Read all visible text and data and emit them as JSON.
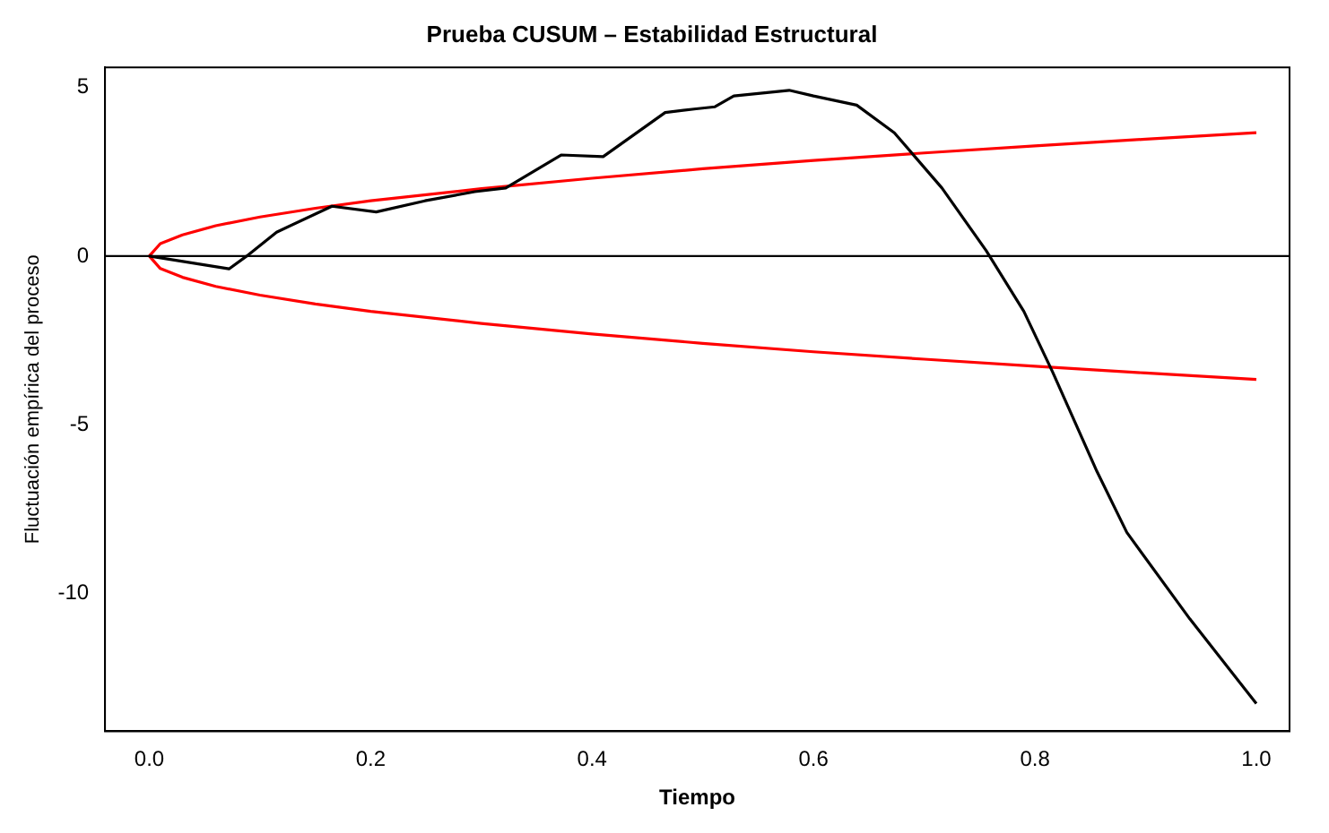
{
  "chart_data": {
    "type": "line",
    "title": "Prueba CUSUM – Estabilidad Estructural",
    "xlabel": "Tiempo",
    "ylabel": "Fluctuación empírica del proceso",
    "xlim": [
      -0.04,
      1.03
    ],
    "ylim": [
      -14.1,
      5.6
    ],
    "xticks": [
      {
        "value": 0,
        "label": "0.0"
      },
      {
        "value": 0.2,
        "label": "0.2"
      },
      {
        "value": 0.4,
        "label": "0.4"
      },
      {
        "value": 0.6,
        "label": "0.6"
      },
      {
        "value": 0.8,
        "label": "0.8"
      },
      {
        "value": 1,
        "label": "1.0"
      }
    ],
    "yticks": [
      5,
      0,
      -5,
      -10
    ],
    "grid": false,
    "legend": false,
    "marker": "none",
    "line_style": "solid",
    "ref_lines": [
      {
        "axis": "y",
        "value": 0,
        "color": "#000000"
      }
    ],
    "series": [
      {
        "color": "#000000",
        "x": [
          0,
          0.072,
          0.088,
          0.115,
          0.165,
          0.205,
          0.249,
          0.294,
          0.322,
          0.372,
          0.41,
          0.466,
          0.494,
          0.511,
          0.528,
          0.578,
          0.6,
          0.639,
          0.673,
          0.716,
          0.756,
          0.79,
          0.816,
          0.856,
          0.883,
          0.94,
          1.0
        ],
        "values": [
          0,
          -0.38,
          0,
          0.71,
          1.48,
          1.31,
          1.64,
          1.91,
          2.02,
          3.0,
          2.95,
          4.26,
          4.37,
          4.43,
          4.75,
          4.92,
          4.75,
          4.48,
          3.66,
          2.02,
          0.16,
          -1.64,
          -3.44,
          -6.39,
          -8.2,
          -10.77,
          -13.28
        ]
      },
      {
        "color": "#ff0000",
        "x": [
          0,
          0.01,
          0.03,
          0.06,
          0.1,
          0.15,
          0.2,
          0.3,
          0.4,
          0.5,
          0.6,
          0.7,
          0.8,
          0.9,
          1.0
        ],
        "values": [
          0,
          0.37,
          0.63,
          0.9,
          1.16,
          1.42,
          1.64,
          2.0,
          2.31,
          2.59,
          2.84,
          3.06,
          3.27,
          3.47,
          3.66
        ]
      },
      {
        "color": "#ff0000",
        "x": [
          0,
          0.01,
          0.03,
          0.06,
          0.1,
          0.15,
          0.2,
          0.3,
          0.4,
          0.5,
          0.6,
          0.7,
          0.8,
          0.9,
          1.0
        ],
        "values": [
          0,
          -0.37,
          -0.63,
          -0.9,
          -1.16,
          -1.42,
          -1.64,
          -2.0,
          -2.31,
          -2.59,
          -2.84,
          -3.06,
          -3.27,
          -3.47,
          -3.66
        ]
      }
    ]
  }
}
